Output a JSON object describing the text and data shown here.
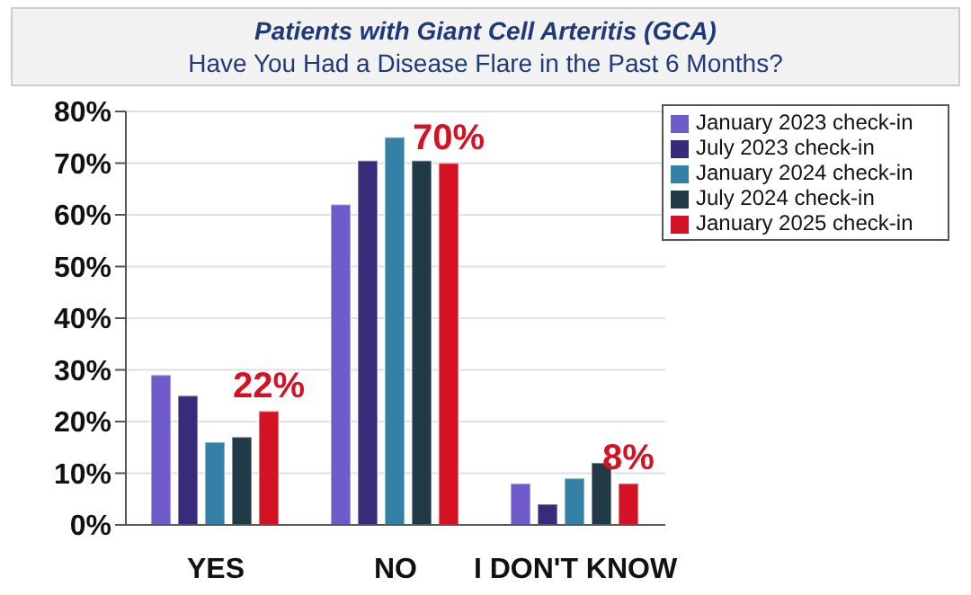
{
  "chart_data": {
    "type": "bar",
    "title": "Patients with Giant Cell Arteritis (GCA)",
    "subtitle": "Have You Had a Disease Flare in the Past 6 Months?",
    "categories": [
      "YES",
      "NO",
      "I DON'T KNOW"
    ],
    "series": [
      {
        "name": "January 2023 check-in",
        "color": "#6f5bc9",
        "values": [
          29,
          62,
          8
        ]
      },
      {
        "name": "July 2023 check-in",
        "color": "#3a2a7a",
        "values": [
          25,
          70.5,
          4
        ]
      },
      {
        "name": "January 2024 check-in",
        "color": "#3580a6",
        "values": [
          16,
          75,
          9
        ]
      },
      {
        "name": "July 2024 check-in",
        "color": "#203a48",
        "values": [
          17,
          70.5,
          12
        ]
      },
      {
        "name": "January 2025 check-in",
        "color": "#d41125",
        "values": [
          22,
          70,
          8
        ],
        "value_labels": [
          "22%",
          "70%",
          "8%"
        ]
      }
    ],
    "ylim": [
      0,
      80
    ],
    "yticks": [
      {
        "value": 0,
        "label": "0%"
      },
      {
        "value": 10,
        "label": "10%"
      },
      {
        "value": 20,
        "label": "20%"
      },
      {
        "value": 30,
        "label": "30%"
      },
      {
        "value": 40,
        "label": "40%"
      },
      {
        "value": 50,
        "label": "50%"
      },
      {
        "value": 60,
        "label": "60%"
      },
      {
        "value": 70,
        "label": "70%"
      },
      {
        "value": 80,
        "label": "80%"
      }
    ],
    "grid": "y",
    "legend": "top right"
  }
}
